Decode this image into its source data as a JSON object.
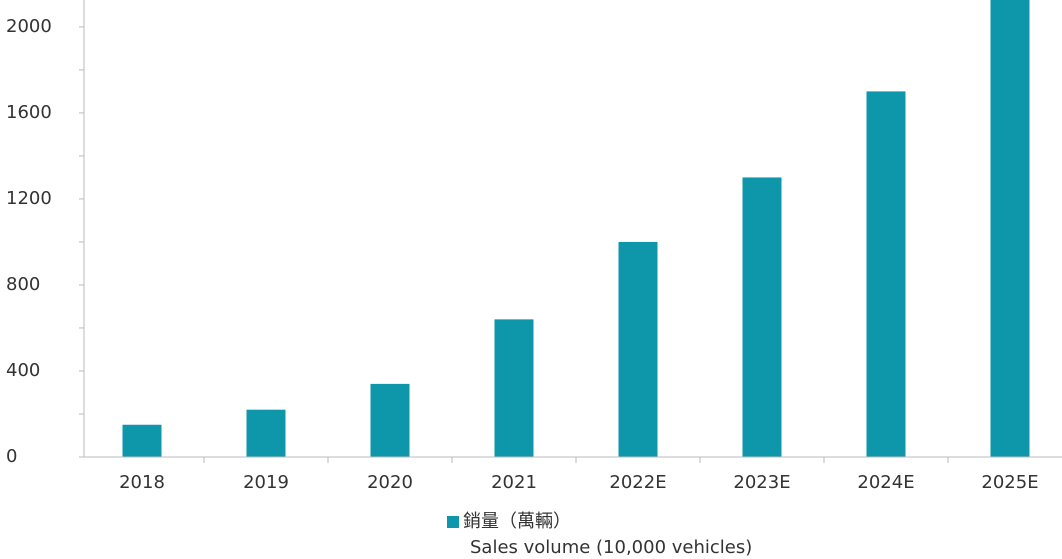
{
  "chart_data": {
    "type": "bar",
    "categories": [
      "2018",
      "2019",
      "2020",
      "2021",
      "2022E",
      "2023E",
      "2024E",
      "2025E"
    ],
    "series": [
      {
        "name": "銷量（萬輛）",
        "color": "#0e97ab",
        "values": [
          150,
          220,
          340,
          640,
          1000,
          1300,
          1700,
          2200
        ]
      }
    ],
    "legend_note": "Sales volume (10,000 vehicles)",
    "ylim": [
      0,
      2125
    ],
    "yticks": [
      0,
      400,
      800,
      1200,
      1600,
      2000
    ],
    "y_minor_ticks": [
      200,
      600,
      1000,
      1400,
      1800
    ],
    "legend": "bottom"
  }
}
